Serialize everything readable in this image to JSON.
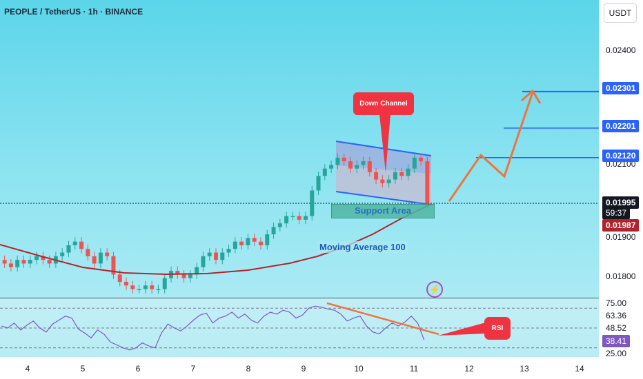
{
  "header": {
    "symbol": "PEOPLE / TetherUS · 1h · BINANCE"
  },
  "axis": {
    "currency": "USDT",
    "price_ticks": [
      "0.02400",
      "0.02100",
      "0.01900",
      "0.01800"
    ],
    "rsi_ticks": [
      "75.00",
      "25.00"
    ],
    "rsi_levels": {
      "upper": 70,
      "mid": 50,
      "lower": 30
    },
    "time_ticks": [
      "4",
      "5",
      "6",
      "7",
      "8",
      "9",
      "10",
      "11",
      "12",
      "13",
      "14"
    ]
  },
  "tags": {
    "t1": {
      "text": "0.02301",
      "color": "#2962ff"
    },
    "t2": {
      "text": "0.02201",
      "color": "#2962ff"
    },
    "t3": {
      "text": "0.02120",
      "color": "#2962ff"
    },
    "last": {
      "text": "0.01995",
      "color": "#131722"
    },
    "countdown": {
      "text": "59:37",
      "color": "#131722"
    },
    "ma": {
      "text": "0.01987",
      "color": "#b2242d"
    },
    "rsi_val": {
      "text": "63.36"
    },
    "rsi_mid": {
      "text": "48.52"
    },
    "rsi_now": {
      "text": "38.41",
      "color": "#7e57c2"
    }
  },
  "annotations": {
    "down_channel": "Down Channel",
    "support_area": "Support Area",
    "moving_average": "Moving Average 100",
    "rsi": "RSI"
  },
  "colors": {
    "up": "#26a69a",
    "down": "#ef5350",
    "ma": "#b2242d",
    "projection": "#f0743a",
    "target": "#2962ff",
    "rsi": "#7e57c2"
  },
  "chart_data": {
    "type": "candlestick",
    "x_axis": [
      "4",
      "5",
      "6",
      "7",
      "8",
      "9",
      "10",
      "11",
      "12",
      "13",
      "14"
    ],
    "y_range": [
      0.0176,
      0.0252
    ],
    "targets": [
      0.02301,
      0.02201,
      0.0212
    ],
    "last_price": 0.01995,
    "ma100_last": 0.01987,
    "closes": [
      0.0183,
      0.0182,
      0.0184,
      0.0183,
      0.0184,
      0.0185,
      0.0184,
      0.0183,
      0.0185,
      0.0186,
      0.0188,
      0.0189,
      0.0187,
      0.0185,
      0.0183,
      0.0186,
      0.0185,
      0.018,
      0.0178,
      0.0177,
      0.0176,
      0.0176,
      0.0177,
      0.0176,
      0.0176,
      0.0179,
      0.0181,
      0.018,
      0.0179,
      0.018,
      0.0182,
      0.0185,
      0.0186,
      0.0184,
      0.0186,
      0.0187,
      0.0189,
      0.0188,
      0.019,
      0.0189,
      0.0188,
      0.0191,
      0.0193,
      0.0194,
      0.0196,
      0.0196,
      0.0195,
      0.0196,
      0.0203,
      0.0207,
      0.0209,
      0.021,
      0.0212,
      0.0211,
      0.0209,
      0.021,
      0.0211,
      0.0208,
      0.0206,
      0.0205,
      0.0206,
      0.0208,
      0.0207,
      0.0209,
      0.0212,
      0.0211,
      0.01995
    ],
    "rsi": [
      52,
      50,
      55,
      48,
      53,
      57,
      50,
      46,
      54,
      58,
      62,
      60,
      49,
      45,
      40,
      48,
      44,
      36,
      33,
      30,
      28,
      30,
      35,
      32,
      30,
      45,
      54,
      50,
      47,
      52,
      58,
      63,
      65,
      55,
      60,
      62,
      66,
      60,
      64,
      58,
      55,
      62,
      66,
      64,
      68,
      66,
      60,
      63,
      70,
      72,
      71,
      69,
      68,
      64,
      57,
      60,
      62,
      52,
      46,
      44,
      50,
      55,
      52,
      56,
      62,
      55,
      38
    ]
  }
}
